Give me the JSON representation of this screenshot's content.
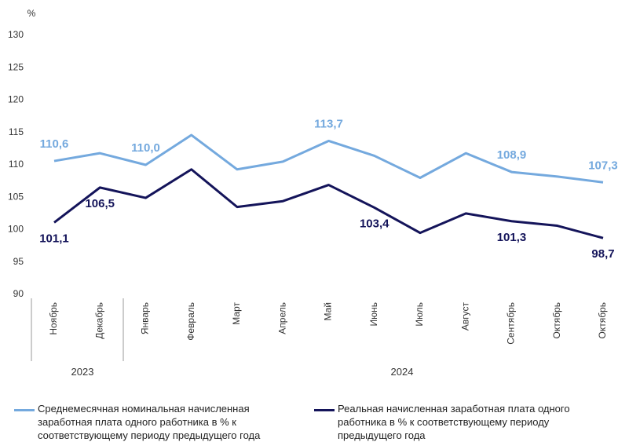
{
  "chart_data": {
    "type": "line",
    "y_unit": "%",
    "categories": [
      "Ноябрь",
      "Декабрь",
      "Январь",
      "Февраль",
      "Март",
      "Апрель",
      "Май",
      "Июнь",
      "Июль",
      "Август",
      "Сентябрь",
      "Октябрь",
      "Октябрь"
    ],
    "year_groups": [
      "2023",
      "2024"
    ],
    "series": [
      {
        "name": "Среднемесячная номинальная начисленная заработная плата одного работника в % к соответствующему периоду предыдущего года",
        "color": "#74a9de",
        "values": [
          110.6,
          111.8,
          110.0,
          114.6,
          109.3,
          110.5,
          113.7,
          111.4,
          108.0,
          111.8,
          108.9,
          108.2,
          107.3
        ],
        "value_labels": [
          "110,6",
          null,
          "110,0",
          null,
          null,
          null,
          "113,7",
          null,
          null,
          null,
          "108,9",
          null,
          "107,3"
        ]
      },
      {
        "name": "Реальная начисленная заработная плата одного работника в % к соответствующему периоду предыдущего года",
        "color": "#14145a",
        "values": [
          101.1,
          106.5,
          104.9,
          109.3,
          103.5,
          104.4,
          106.9,
          103.4,
          99.5,
          102.5,
          101.3,
          100.6,
          98.7
        ],
        "value_labels": [
          "101,1",
          "106,5",
          null,
          null,
          null,
          null,
          null,
          "103,4",
          null,
          null,
          "101,3",
          null,
          "98,7"
        ]
      }
    ],
    "ylim": [
      90,
      130
    ],
    "yticks": [
      90,
      95,
      100,
      105,
      110,
      115,
      120,
      125,
      130
    ],
    "grid": false
  }
}
